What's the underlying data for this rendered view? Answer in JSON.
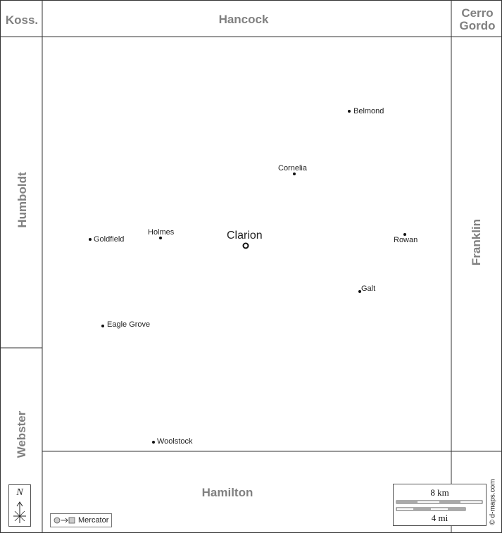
{
  "counties": {
    "koss": "Koss.",
    "hancock": "Hancock",
    "cerro_gordo": [
      "Cerro",
      "Gordo"
    ],
    "humboldt": "Humboldt",
    "franklin": "Franklin",
    "webster": "Webster",
    "hamilton": "Hamilton"
  },
  "county_seat": {
    "name": "Clarion"
  },
  "towns": {
    "belmond": "Belmond",
    "cornelia": "Cornelia",
    "goldfield": "Goldfield",
    "holmes": "Holmes",
    "rowan": "Rowan",
    "galt": "Galt",
    "eagle_grove": "Eagle Grove",
    "woolstock": "Woolstock"
  },
  "compass": {
    "north_label": "N"
  },
  "projection": {
    "label": "Mercator"
  },
  "scale": {
    "km_label": "8 km",
    "mi_label": "4 mi"
  },
  "credit": "© d-maps.com",
  "colors": {
    "border": "#333333",
    "neighbor_label": "#808080",
    "town_text": "#222222",
    "background": "#ffffff"
  }
}
